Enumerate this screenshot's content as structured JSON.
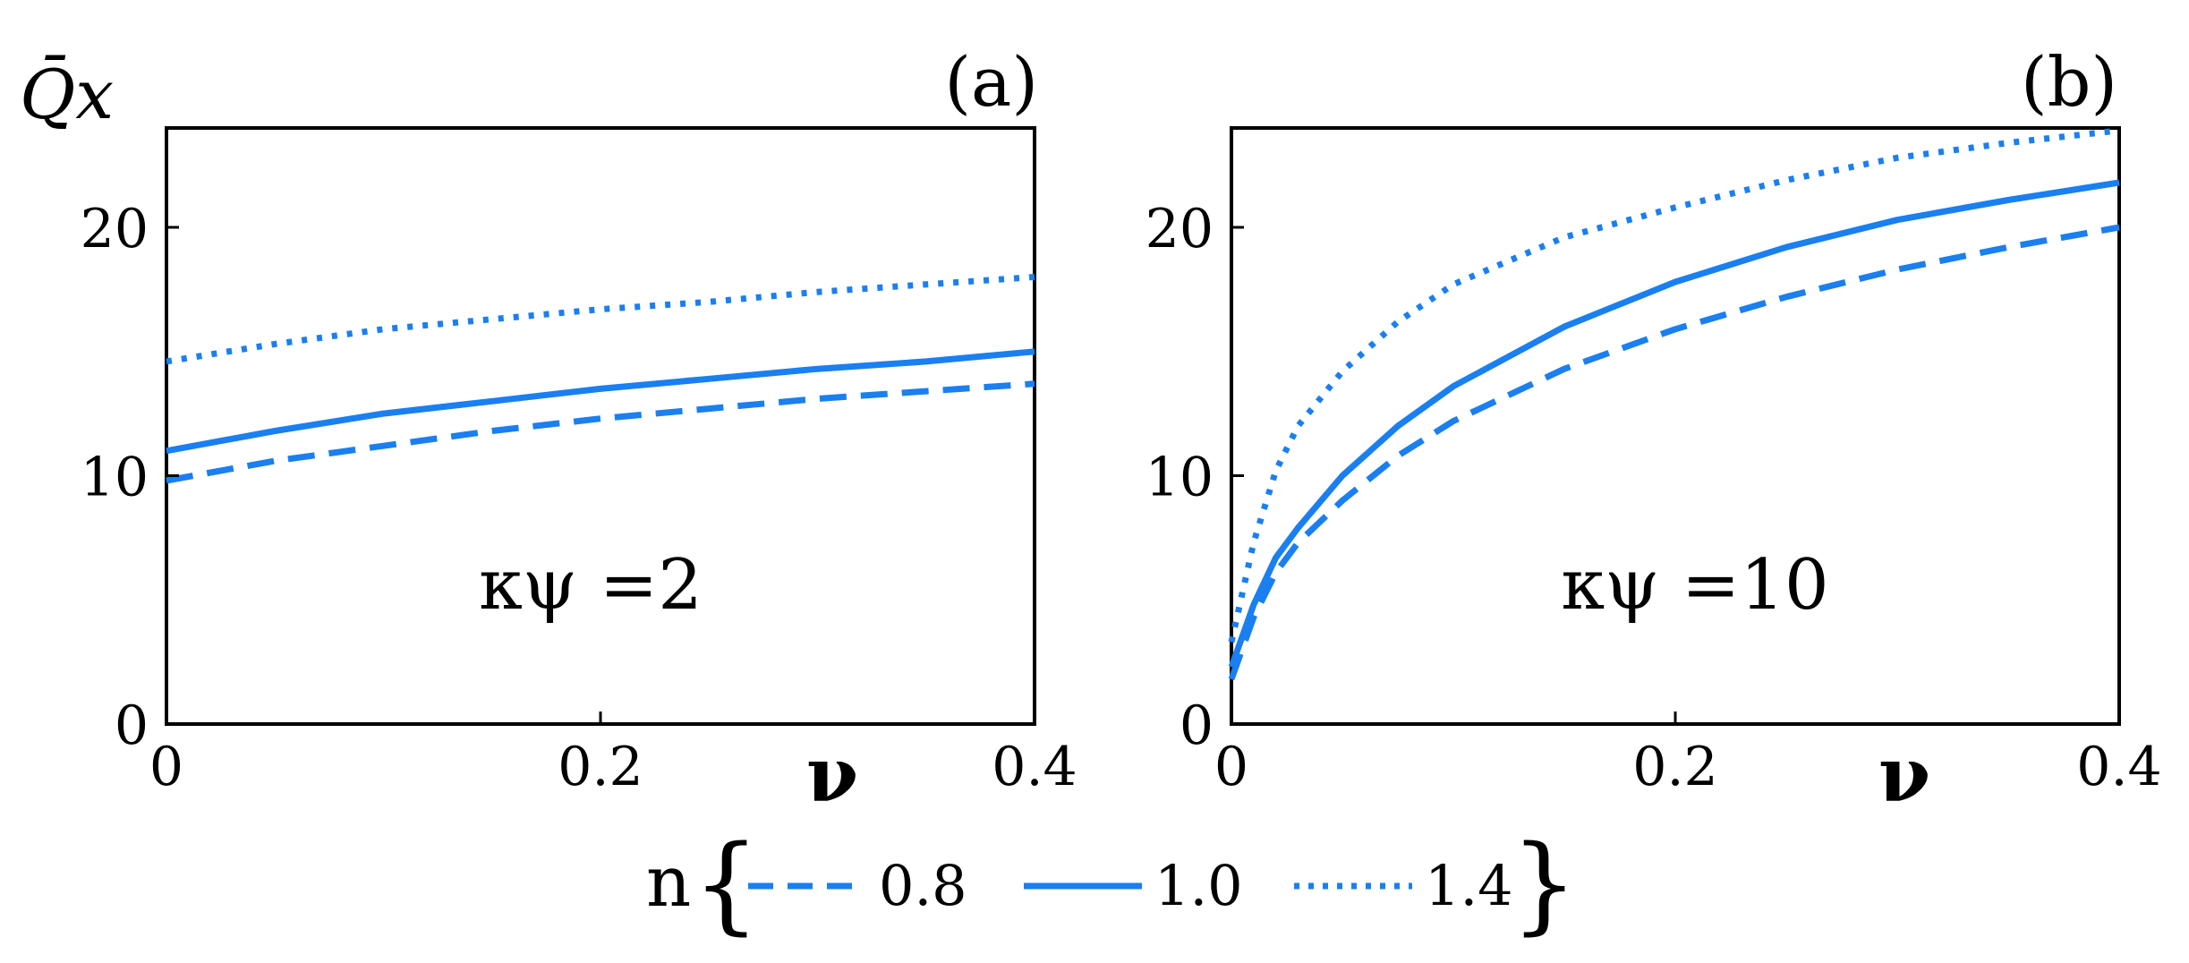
{
  "panels": [
    {
      "label": "(a)",
      "ylabel": "Q̄x",
      "xlabel": "ν",
      "annotation": "κψ =2",
      "xlim": [
        0,
        0.4
      ],
      "ylim": [
        0,
        24
      ],
      "xticks": [
        {
          "v": 0,
          "t": "0"
        },
        {
          "v": 0.2,
          "t": "0.2"
        },
        {
          "v": 0.4,
          "t": "0.4"
        }
      ],
      "yticks": [
        {
          "v": 0,
          "t": "0"
        },
        {
          "v": 10,
          "t": "10"
        },
        {
          "v": 20,
          "t": "20"
        }
      ]
    },
    {
      "label": "(b)",
      "ylabel": "",
      "xlabel": "ν",
      "annotation": "κψ =10",
      "xlim": [
        0,
        0.4
      ],
      "ylim": [
        0,
        24
      ],
      "xticks": [
        {
          "v": 0,
          "t": "0"
        },
        {
          "v": 0.2,
          "t": "0.2"
        },
        {
          "v": 0.4,
          "t": "0.4"
        }
      ],
      "yticks": [
        {
          "v": 0,
          "t": "0"
        },
        {
          "v": 10,
          "t": "10"
        },
        {
          "v": 20,
          "t": "20"
        }
      ]
    }
  ],
  "legend": {
    "title": "n",
    "items": [
      {
        "label": "0.8",
        "style": "dashed"
      },
      {
        "label": "1.0",
        "style": "solid"
      },
      {
        "label": "1.4",
        "style": "dotted"
      }
    ]
  },
  "colors": {
    "series": "#1a7ff0",
    "axes": "#000000"
  },
  "chart_data": [
    {
      "type": "line",
      "title": "(a)",
      "annotation": "κψ =2",
      "xlabel": "ν",
      "ylabel": "Q̄x",
      "xlim": [
        0,
        0.4
      ],
      "ylim": [
        0,
        24
      ],
      "series": [
        {
          "name": "0.8",
          "style": "dashed",
          "x": [
            0,
            0.05,
            0.1,
            0.15,
            0.2,
            0.25,
            0.3,
            0.35,
            0.4
          ],
          "y": [
            9.8,
            10.6,
            11.2,
            11.8,
            12.3,
            12.7,
            13.1,
            13.4,
            13.7
          ]
        },
        {
          "name": "1.0",
          "style": "solid",
          "x": [
            0,
            0.05,
            0.1,
            0.15,
            0.2,
            0.25,
            0.3,
            0.35,
            0.4
          ],
          "y": [
            11.0,
            11.8,
            12.5,
            13.0,
            13.5,
            13.9,
            14.3,
            14.6,
            15.0
          ]
        },
        {
          "name": "1.4",
          "style": "dotted",
          "x": [
            0,
            0.05,
            0.1,
            0.15,
            0.2,
            0.25,
            0.3,
            0.35,
            0.4
          ],
          "y": [
            14.6,
            15.3,
            15.9,
            16.3,
            16.7,
            17.0,
            17.4,
            17.7,
            18.0
          ]
        }
      ]
    },
    {
      "type": "line",
      "title": "(b)",
      "annotation": "κψ =10",
      "xlabel": "ν",
      "ylabel": "",
      "xlim": [
        0,
        0.4
      ],
      "ylim": [
        0,
        24
      ],
      "series": [
        {
          "name": "0.8",
          "style": "dashed",
          "x": [
            0,
            0.01,
            0.02,
            0.03,
            0.05,
            0.075,
            0.1,
            0.15,
            0.2,
            0.25,
            0.3,
            0.35,
            0.4
          ],
          "y": [
            1.8,
            4.3,
            6.1,
            7.3,
            9.0,
            10.8,
            12.2,
            14.3,
            15.9,
            17.2,
            18.3,
            19.2,
            20.0
          ]
        },
        {
          "name": "1.0",
          "style": "solid",
          "x": [
            0,
            0.01,
            0.02,
            0.03,
            0.05,
            0.075,
            0.1,
            0.15,
            0.2,
            0.25,
            0.3,
            0.35,
            0.4
          ],
          "y": [
            2.3,
            4.8,
            6.7,
            7.9,
            10.0,
            12.0,
            13.6,
            16.0,
            17.8,
            19.2,
            20.3,
            21.1,
            21.8
          ]
        },
        {
          "name": "1.4",
          "style": "dotted",
          "x": [
            0,
            0.01,
            0.02,
            0.03,
            0.05,
            0.075,
            0.1,
            0.15,
            0.2,
            0.25,
            0.3,
            0.35,
            0.4
          ],
          "y": [
            3.3,
            7.3,
            10.2,
            12.0,
            14.2,
            16.2,
            17.7,
            19.6,
            20.8,
            21.9,
            22.8,
            23.4,
            23.9
          ]
        }
      ]
    }
  ]
}
